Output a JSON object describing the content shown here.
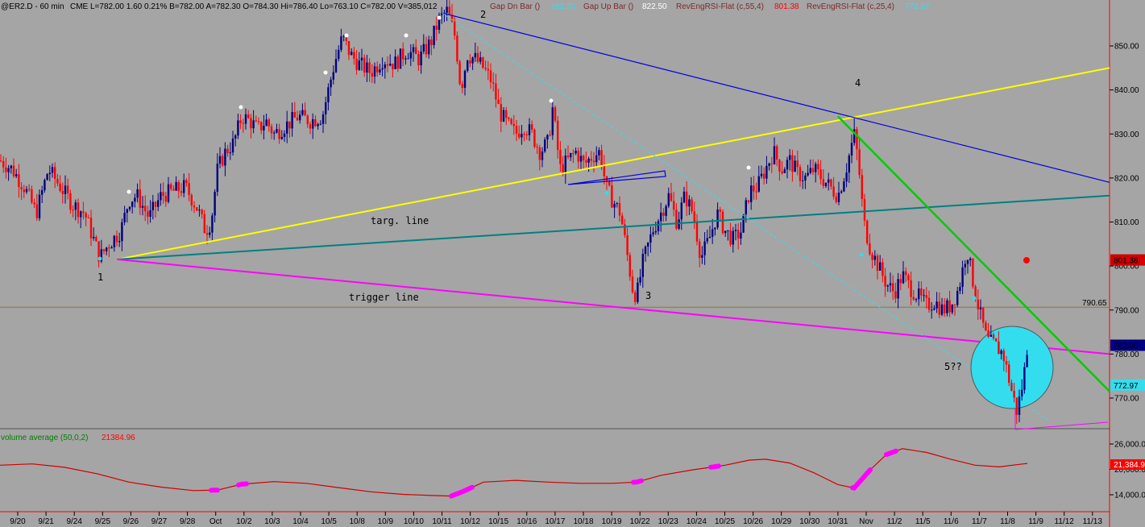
{
  "header": {
    "symbol": "@ER2.D - 60 min",
    "exchange": "CME",
    "quote": "L=782.00  1.60  0.21%  B=782.00  A=782.30  O=784.30  Hi=786.40  Lo=763.10  C=782.00  V=385,012",
    "gapdn_name": "Gap Dn Bar ()",
    "gapdn_value": "792.70",
    "gapup_name": "Gap Up Bar ()",
    "gapup_value": "822.50",
    "rsi1_name": "RevEngRSI-Flat (c,55,4)",
    "rsi1_value": "801.38",
    "rsi2_name": "RevEngRSI-Flat (c,25,4)",
    "rsi2_value": "772.97"
  },
  "colors": {
    "background": "#a5a5a5",
    "up_bar": "#00007f",
    "down_bar": "#ff0000",
    "yellow_line": "#ffff00",
    "magenta_line": "#ff00ff",
    "blue_line": "#0000dd",
    "teal_line": "#008080",
    "green_line": "#00cc00",
    "cyan_circle": "#33ddee",
    "volume_line": "#d00000"
  },
  "chart_data": [
    {
      "type": "candlestick",
      "title": "",
      "xlabel": "",
      "ylabel": "",
      "ylim": [
        758,
        862
      ],
      "y_ticks": [
        "850.00",
        "840.00",
        "830.00",
        "820.00",
        "810.00",
        "800.00",
        "790.00",
        "780.00",
        "770.00"
      ],
      "y_tick_values": [
        850,
        840,
        830,
        820,
        810,
        800,
        790,
        780,
        770
      ],
      "x_ticks": [
        "9/20",
        "9/21",
        "9/24",
        "9/25",
        "9/26",
        "9/27",
        "9/28",
        "Oct",
        "10/2",
        "10/3",
        "10/4",
        "10/5",
        "10/8",
        "10/9",
        "10/10",
        "10/11",
        "10/12",
        "10/15",
        "10/16",
        "10/17",
        "10/18",
        "10/19",
        "10/22",
        "10/23",
        "10/24",
        "10/25",
        "10/26",
        "10/29",
        "10/30",
        "10/31",
        "Nov",
        "11/2",
        "11/5",
        "11/6",
        "11/7",
        "11/8",
        "11/9",
        "11/12",
        "11/13"
      ],
      "price_labels": [
        {
          "text": "801.38",
          "value": 801.38,
          "color": "#d00000"
        },
        {
          "text": "790.65",
          "value": 790.65,
          "color": "#7a7a30"
        },
        {
          "text": "782.00",
          "value": 782.0,
          "color": "#000080"
        },
        {
          "text": "772.97",
          "value": 772.97,
          "color": "#33ddee"
        }
      ],
      "horizontal_line": {
        "value": 790.65
      },
      "trendlines": [
        {
          "name": "yellow",
          "from": {
            "date": "9/25",
            "value": 801.5
          },
          "to": {
            "date": "11/13",
            "value": 845
          }
        },
        {
          "name": "teal",
          "from": {
            "date": "9/25",
            "value": 801.5
          },
          "to": {
            "date": "11/13",
            "value": 816
          }
        },
        {
          "name": "magenta",
          "from": {
            "date": "9/25",
            "value": 801.5
          },
          "to": {
            "date": "11/13",
            "value": 780
          }
        },
        {
          "name": "blue",
          "from": {
            "date": "10/11",
            "value": 857.5
          },
          "to": {
            "date": "11/13",
            "value": 819
          }
        },
        {
          "name": "green",
          "from": {
            "date": "10/31",
            "value": 834
          },
          "to": {
            "date": "11/13",
            "value": 771.5
          }
        },
        {
          "name": "cyan-dashed",
          "from": {
            "date": "10/11",
            "value": 857.5
          },
          "to": {
            "date": "11/8",
            "value": 765
          }
        }
      ],
      "annotations": [
        {
          "text": "1"
        },
        {
          "text": "2"
        },
        {
          "text": "3"
        },
        {
          "text": "4"
        },
        {
          "text": "5??"
        },
        {
          "text": "targ. line"
        },
        {
          "text": "trigger line"
        }
      ],
      "path_points": [
        [
          0,
          824
        ],
        [
          15,
          822
        ],
        [
          30,
          818
        ],
        [
          45,
          812
        ],
        [
          60,
          822
        ],
        [
          75,
          818
        ],
        [
          90,
          814
        ],
        [
          105,
          812
        ],
        [
          118,
          805
        ],
        [
          124,
          802
        ],
        [
          135,
          805
        ],
        [
          150,
          808
        ],
        [
          160,
          815
        ],
        [
          170,
          816
        ],
        [
          185,
          811
        ],
        [
          200,
          816
        ],
        [
          215,
          817
        ],
        [
          230,
          818
        ],
        [
          245,
          813
        ],
        [
          255,
          808
        ],
        [
          262,
          810
        ],
        [
          270,
          822
        ],
        [
          280,
          826
        ],
        [
          290,
          828
        ],
        [
          300,
          834
        ],
        [
          310,
          833
        ],
        [
          320,
          831
        ],
        [
          330,
          833
        ],
        [
          340,
          830
        ],
        [
          355,
          832
        ],
        [
          370,
          834
        ],
        [
          385,
          833
        ],
        [
          400,
          834
        ],
        [
          405,
          838
        ],
        [
          415,
          846
        ],
        [
          425,
          852
        ],
        [
          435,
          848
        ],
        [
          445,
          846
        ],
        [
          460,
          844
        ],
        [
          475,
          847
        ],
        [
          490,
          846
        ],
        [
          505,
          849
        ],
        [
          520,
          847
        ],
        [
          535,
          851
        ],
        [
          545,
          856
        ],
        [
          555,
          858
        ],
        [
          565,
          852
        ],
        [
          572,
          840
        ],
        [
          580,
          848
        ],
        [
          590,
          847
        ],
        [
          600,
          845
        ],
        [
          610,
          842
        ],
        [
          620,
          835
        ],
        [
          630,
          832
        ],
        [
          640,
          830
        ],
        [
          650,
          832
        ],
        [
          660,
          830
        ],
        [
          670,
          826
        ],
        [
          680,
          828
        ],
        [
          686,
          836
        ],
        [
          695,
          822
        ],
        [
          705,
          824
        ],
        [
          715,
          826
        ],
        [
          725,
          823
        ],
        [
          735,
          825
        ],
        [
          745,
          826
        ],
        [
          752,
          818
        ],
        [
          760,
          815
        ],
        [
          770,
          812
        ],
        [
          778,
          803
        ],
        [
          785,
          795
        ],
        [
          790,
          793
        ],
        [
          798,
          801
        ],
        [
          810,
          808
        ],
        [
          820,
          812
        ],
        [
          830,
          816
        ],
        [
          840,
          810
        ],
        [
          850,
          816
        ],
        [
          860,
          812
        ],
        [
          870,
          802
        ],
        [
          880,
          806
        ],
        [
          890,
          812
        ],
        [
          900,
          808
        ],
        [
          910,
          806
        ],
        [
          920,
          808
        ],
        [
          930,
          817
        ],
        [
          940,
          818
        ],
        [
          950,
          822
        ],
        [
          960,
          826
        ],
        [
          970,
          822
        ],
        [
          980,
          824
        ],
        [
          990,
          821
        ],
        [
          1000,
          820
        ],
        [
          1010,
          822
        ],
        [
          1020,
          820
        ],
        [
          1030,
          818
        ],
        [
          1040,
          816
        ],
        [
          1050,
          822
        ],
        [
          1060,
          830
        ],
        [
          1065,
          824
        ],
        [
          1072,
          810
        ],
        [
          1080,
          804
        ],
        [
          1090,
          800
        ],
        [
          1100,
          796
        ],
        [
          1110,
          794
        ],
        [
          1120,
          798
        ],
        [
          1130,
          795
        ],
        [
          1140,
          793
        ],
        [
          1150,
          791
        ],
        [
          1160,
          792
        ],
        [
          1170,
          790
        ],
        [
          1180,
          791
        ],
        [
          1190,
          795
        ],
        [
          1200,
          804
        ],
        [
          1208,
          796
        ],
        [
          1215,
          790
        ],
        [
          1225,
          783
        ],
        [
          1235,
          782
        ],
        [
          1245,
          780
        ],
        [
          1255,
          772
        ],
        [
          1262,
          767
        ],
        [
          1270,
          774
        ],
        [
          1275,
          782
        ]
      ]
    },
    {
      "type": "line",
      "title": "",
      "series_label": "volume average (50,0,2)",
      "series_value": "21384.96",
      "ylim": [
        12000,
        30000
      ],
      "y_ticks": [
        "26,000.0",
        "20,000.0",
        "14,000.0"
      ],
      "y_tick_values": [
        26000,
        20000,
        14000
      ],
      "last_value_label": "21,384.9",
      "last_value": 21384.96,
      "points": [
        [
          0,
          21000
        ],
        [
          40,
          21300
        ],
        [
          80,
          20500
        ],
        [
          120,
          19000
        ],
        [
          160,
          17000
        ],
        [
          200,
          15800
        ],
        [
          240,
          15000
        ],
        [
          270,
          15100
        ],
        [
          300,
          16500
        ],
        [
          340,
          17100
        ],
        [
          380,
          16700
        ],
        [
          420,
          15700
        ],
        [
          460,
          14700
        ],
        [
          500,
          14100
        ],
        [
          540,
          13800
        ],
        [
          560,
          13700
        ],
        [
          575,
          14800
        ],
        [
          600,
          17000
        ],
        [
          640,
          17400
        ],
        [
          680,
          17000
        ],
        [
          720,
          16700
        ],
        [
          760,
          16700
        ],
        [
          790,
          17000
        ],
        [
          820,
          18600
        ],
        [
          860,
          19900
        ],
        [
          900,
          21000
        ],
        [
          930,
          22200
        ],
        [
          950,
          22400
        ],
        [
          980,
          21500
        ],
        [
          1010,
          19200
        ],
        [
          1040,
          16400
        ],
        [
          1060,
          15600
        ],
        [
          1080,
          19900
        ],
        [
          1100,
          23500
        ],
        [
          1120,
          24900
        ],
        [
          1150,
          24000
        ],
        [
          1180,
          22400
        ],
        [
          1210,
          21000
        ],
        [
          1240,
          20600
        ],
        [
          1270,
          21300
        ],
        [
          1275,
          21400
        ]
      ],
      "highlights": [
        {
          "from": 262,
          "to": 270
        },
        {
          "from": 296,
          "to": 306
        },
        {
          "from": 560,
          "to": 586
        },
        {
          "from": 786,
          "to": 796
        },
        {
          "from": 882,
          "to": 892
        },
        {
          "from": 1058,
          "to": 1080
        },
        {
          "from": 1100,
          "to": 1112
        }
      ]
    }
  ]
}
